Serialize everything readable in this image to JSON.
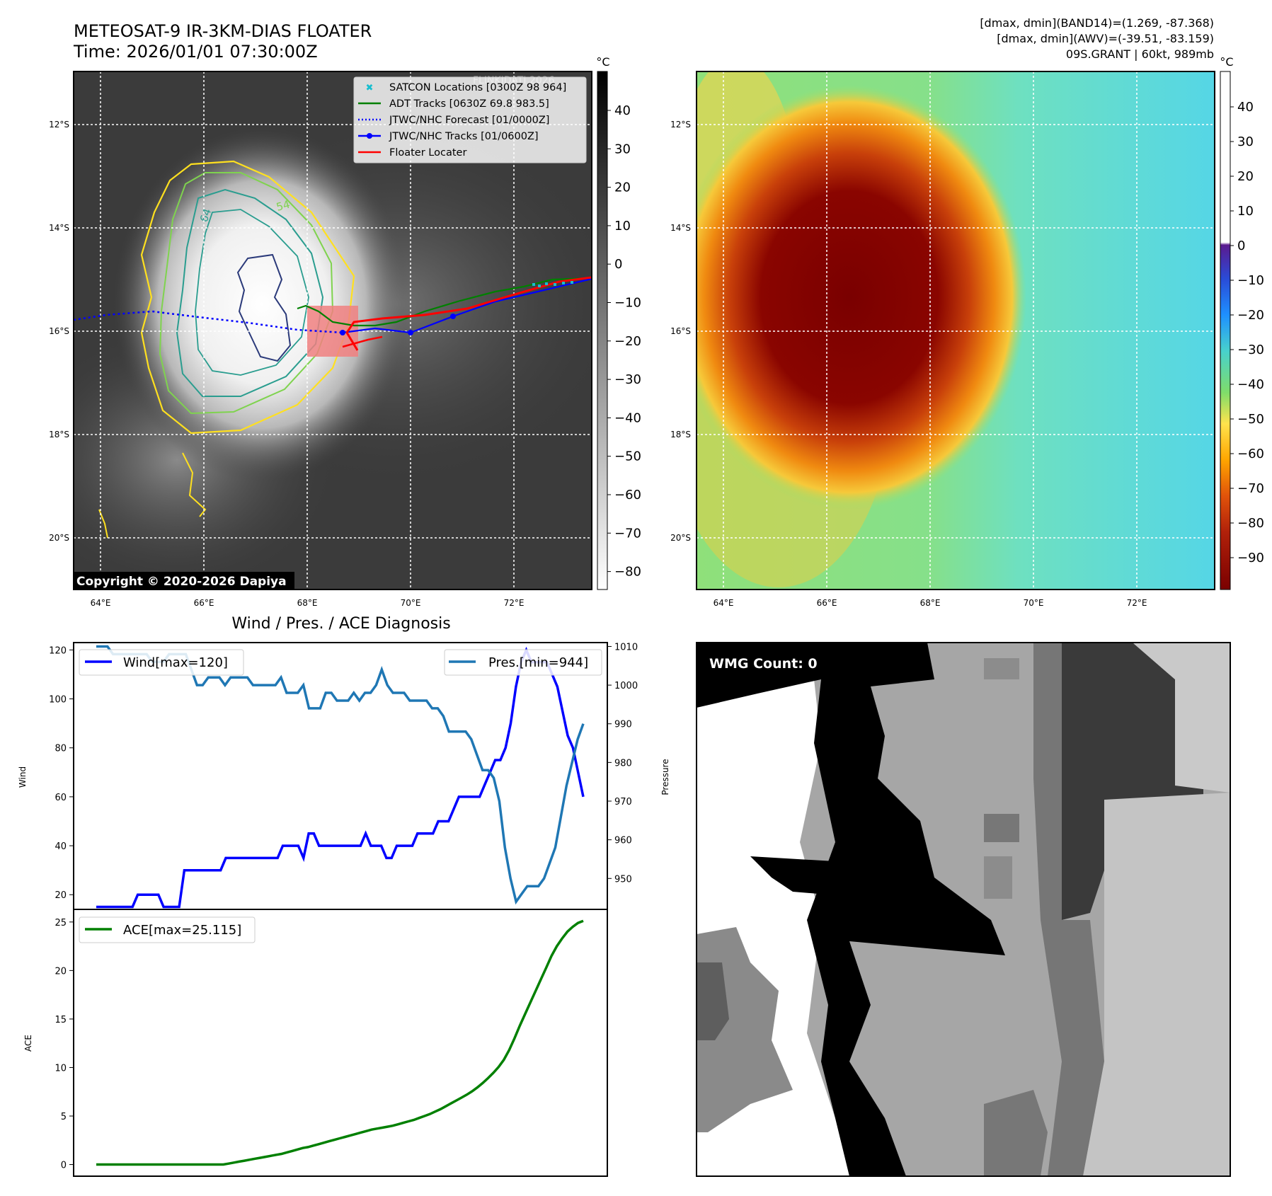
{
  "header": {
    "title_line1": "METEOSAT-9 IR-3KM-DIAS FLOATER",
    "title_line2": "Time: 2026/01/01 07:30:00Z",
    "info_line1": "[dmax, dmin](BAND14)=(1.269, -87.368)",
    "info_line2": "[dmax, dmin](AWV)=(-39.51, -83.159)",
    "info_line3": "09S.GRANT | 60kt, 989mb"
  },
  "colors": {
    "wind": "#0000ff",
    "pressure": "#1f77b4",
    "ace": "#008000",
    "adt": "#008000",
    "forecast": "#0000ff",
    "jtwc": "#0000ff",
    "floater": "#ff0000",
    "satcon": "#17becf",
    "contour_yellow": "#ffe01f",
    "contour_lightgreen": "#7fd34e",
    "contour_teal": "#2a9d8f",
    "contour_navy": "#2b3a7a"
  },
  "map_ir": {
    "cbar_unit": "°C",
    "cbar_ticks": [
      "40",
      "30",
      "20",
      "10",
      "0",
      "−10",
      "−20",
      "−30",
      "−40",
      "−50",
      "−60",
      "−70",
      "−80"
    ],
    "lat_labels": [
      "12°S",
      "14°S",
      "16°S",
      "18°S",
      "20°S"
    ],
    "lon_labels": [
      "64°E",
      "66°E",
      "68°E",
      "70°E",
      "72°E"
    ],
    "contour_labels": [
      "64",
      "54"
    ],
    "legend": [
      "SATCON Locations [0300Z 98 964]",
      "ADT Tracks [0630Z 69.8 983.5]",
      "JTWC/NHC Forecast [01/0000Z]",
      "JTWC/NHC Tracks [01/0600Z]",
      "Floater Locater"
    ],
    "legend_behind_text": "FLINKIDATI 2026",
    "copyright": "Copyright © 2020-2026 Dapiya"
  },
  "map_awv": {
    "cbar_unit": "°C",
    "cbar_ticks": [
      "40",
      "30",
      "20",
      "10",
      "0",
      "−10",
      "−20",
      "−30",
      "−40",
      "−50",
      "−60",
      "−70",
      "−80",
      "−90"
    ],
    "lat_labels": [
      "12°S",
      "14°S",
      "16°S",
      "18°S",
      "20°S"
    ],
    "lon_labels": [
      "64°E",
      "66°E",
      "68°E",
      "70°E",
      "72°E"
    ]
  },
  "chart_data": [
    {
      "type": "line",
      "title": "Wind / Pres. / ACE Diagnosis",
      "ylabel": "Wind",
      "ylabel2": "Pressure",
      "ylim": [
        14,
        123
      ],
      "ylim2": [
        942,
        1011
      ],
      "yticks": [
        20,
        40,
        60,
        80,
        100,
        120
      ],
      "yticks2": [
        950,
        960,
        970,
        980,
        990,
        1000,
        1010
      ],
      "series": [
        {
          "name": "Wind[max=120]",
          "axis": "left",
          "values": [
            15,
            15,
            15,
            15,
            15,
            15,
            15,
            15,
            20,
            20,
            20,
            20,
            20,
            15,
            15,
            15,
            15,
            30,
            30,
            30,
            30,
            30,
            30,
            30,
            30,
            35,
            35,
            35,
            35,
            35,
            35,
            35,
            35,
            35,
            35,
            35,
            40,
            40,
            40,
            40,
            35,
            45,
            45,
            40,
            40,
            40,
            40,
            40,
            40,
            40,
            40,
            40,
            45,
            40,
            40,
            40,
            35,
            35,
            40,
            40,
            40,
            40,
            45,
            45,
            45,
            45,
            50,
            50,
            50,
            55,
            60,
            60,
            60,
            60,
            60,
            65,
            70,
            75,
            75,
            80,
            90,
            105,
            115,
            120,
            115,
            115,
            115,
            115,
            110,
            105,
            95,
            85,
            80,
            70,
            60
          ]
        },
        {
          "name": "Pres.[min=944]",
          "axis": "right",
          "values": [
            1010,
            1010,
            1010,
            1008,
            1008,
            1008,
            1008,
            1008,
            1008,
            1008,
            1006,
            1006,
            1006,
            1008,
            1008,
            1008,
            1008,
            1004,
            1000,
            1000,
            1002,
            1002,
            1002,
            1000,
            1002,
            1002,
            1002,
            1002,
            1000,
            1000,
            1000,
            1000,
            1000,
            1002,
            998,
            998,
            998,
            1000,
            994,
            994,
            994,
            998,
            998,
            996,
            996,
            996,
            998,
            996,
            998,
            998,
            1000,
            1004,
            1000,
            998,
            998,
            998,
            996,
            996,
            996,
            996,
            994,
            994,
            992,
            988,
            988,
            988,
            988,
            986,
            982,
            978,
            978,
            976,
            970,
            958,
            950,
            944,
            946,
            948,
            948,
            948,
            950,
            954,
            958,
            966,
            974,
            980,
            986,
            990
          ]
        }
      ],
      "legend": [
        "Wind[max=120]",
        "Pres.[min=944]"
      ]
    },
    {
      "type": "line",
      "ylabel": "ACE",
      "ylim": [
        -1.2,
        26.3
      ],
      "yticks": [
        0,
        5,
        10,
        15,
        20,
        25
      ],
      "series": [
        {
          "name": "ACE[max=25.115]",
          "values": [
            0,
            0,
            0,
            0,
            0,
            0,
            0,
            0,
            0,
            0,
            0,
            0,
            0,
            0,
            0,
            0,
            0,
            0,
            0,
            0,
            0,
            0,
            0,
            0,
            0,
            0.1,
            0.2,
            0.3,
            0.4,
            0.5,
            0.6,
            0.7,
            0.8,
            0.9,
            1.0,
            1.1,
            1.25,
            1.4,
            1.55,
            1.7,
            1.8,
            1.95,
            2.1,
            2.25,
            2.4,
            2.55,
            2.7,
            2.85,
            3.0,
            3.15,
            3.3,
            3.45,
            3.6,
            3.7,
            3.8,
            3.9,
            4.0,
            4.15,
            4.3,
            4.45,
            4.6,
            4.8,
            5.0,
            5.2,
            5.45,
            5.7,
            6.0,
            6.3,
            6.6,
            6.9,
            7.2,
            7.55,
            7.95,
            8.4,
            8.9,
            9.45,
            10.05,
            10.8,
            11.8,
            13.0,
            14.3,
            15.5,
            16.7,
            17.9,
            19.1,
            20.3,
            21.5,
            22.5,
            23.3,
            24.0,
            24.5,
            24.9,
            25.115
          ]
        }
      ],
      "legend": [
        "ACE[max=25.115]"
      ]
    }
  ],
  "wmg": {
    "label": "WMG Count: 0"
  }
}
